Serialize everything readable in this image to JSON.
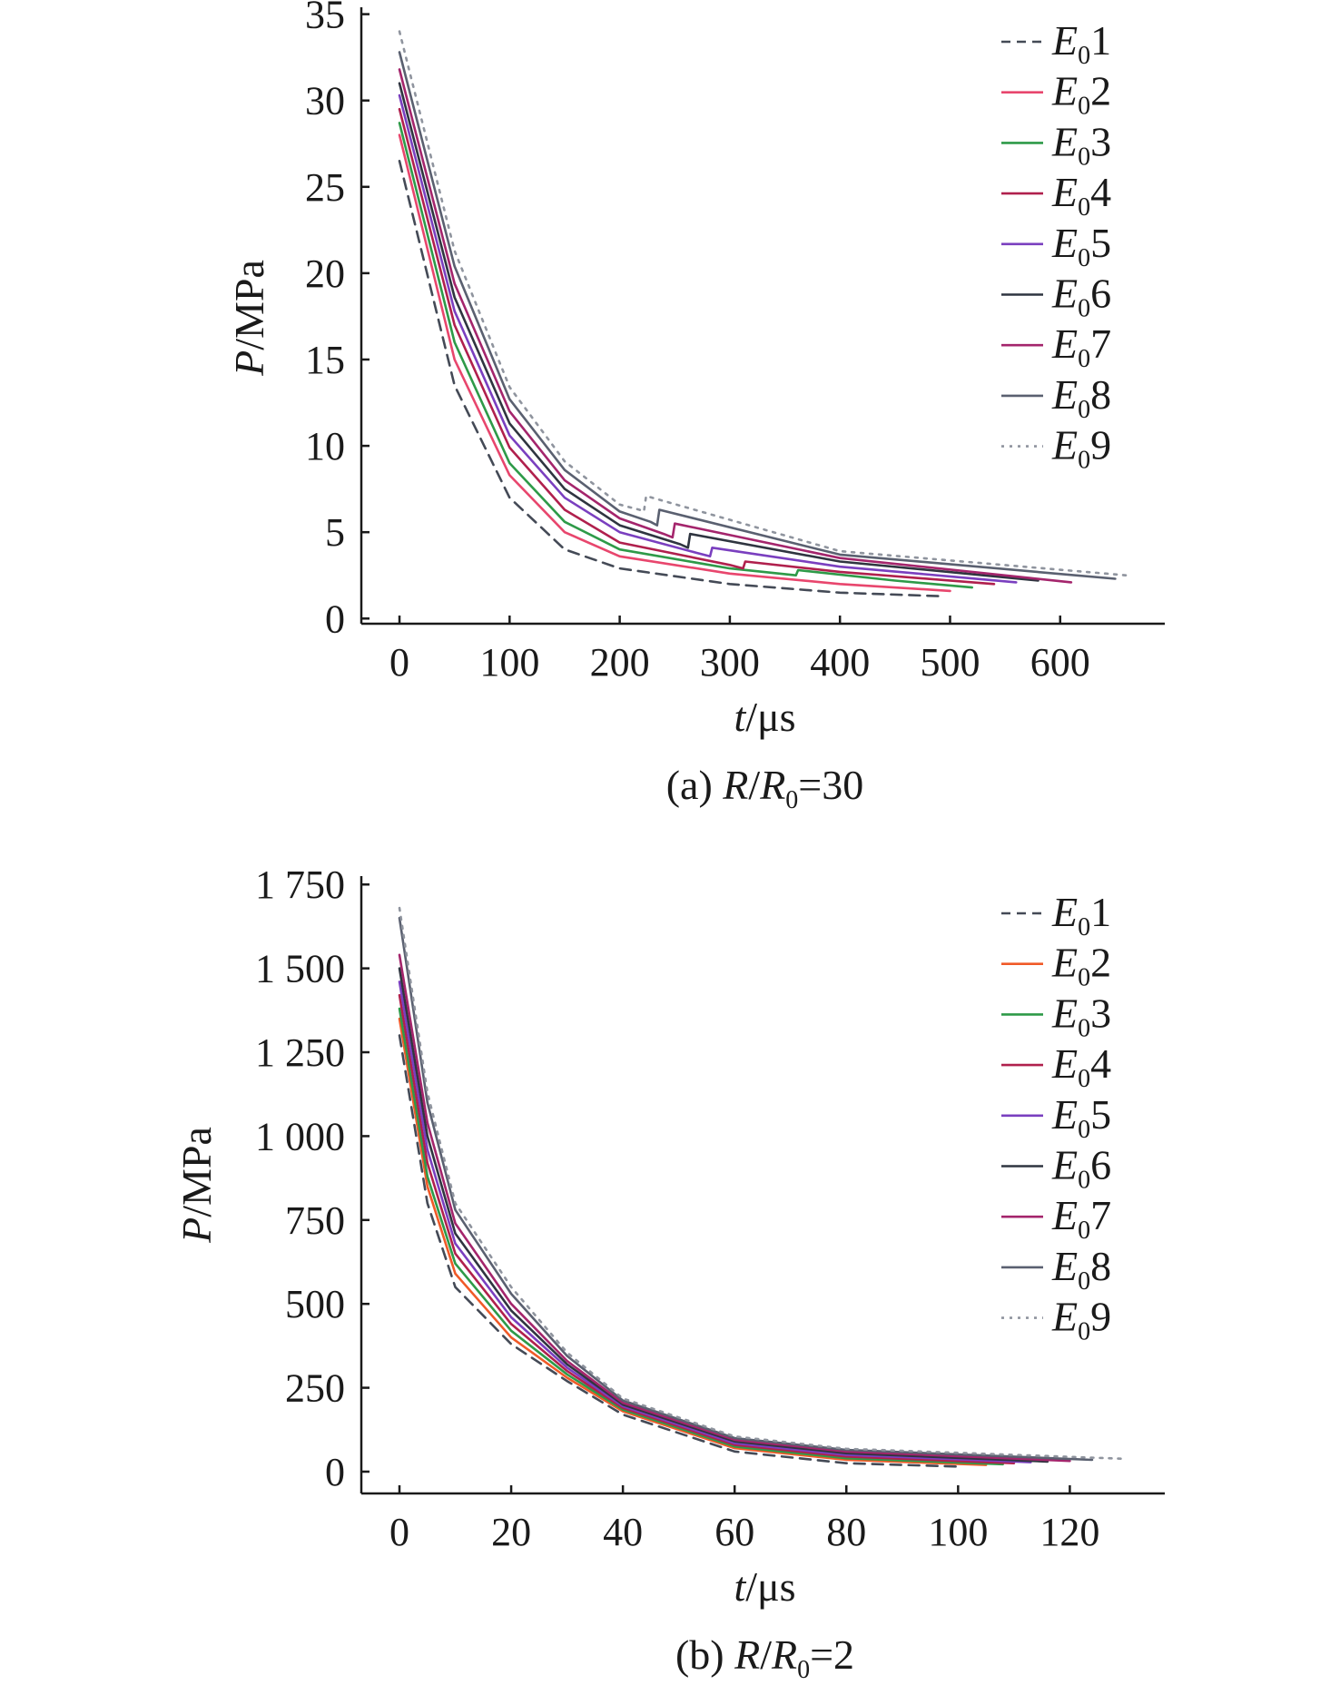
{
  "chart_data": [
    {
      "type": "line",
      "panel": "a",
      "caption": {
        "prefix": "(a) ",
        "r": "R",
        "slash": "/",
        "r0": "R",
        "r0_sub": "0",
        "suffix": "=30"
      },
      "xlabel": {
        "var": "t",
        "unit": "/μs"
      },
      "ylabel": {
        "var": "P",
        "unit": "/MPa"
      },
      "xlim": [
        -33,
        695
      ],
      "ylim": [
        -0.3,
        35.4
      ],
      "xticks": [
        0,
        100,
        200,
        300,
        400,
        500,
        600
      ],
      "xtick_labels": [
        "0",
        "100",
        "200",
        "300",
        "400",
        "500",
        "600"
      ],
      "yticks": [
        0,
        5,
        10,
        15,
        20,
        25,
        30,
        35
      ],
      "ytick_labels": [
        "0",
        "5",
        "10",
        "15",
        "20",
        "25",
        "30",
        "35"
      ],
      "legend_position": "top-right",
      "series": [
        {
          "name": "E",
          "name_sub": "0",
          "name_suffix": "1",
          "color": "#444a56",
          "dash": "dash",
          "x": [
            0,
            50,
            100,
            150,
            200,
            300,
            400,
            490
          ],
          "y": [
            26.5,
            13.5,
            7.0,
            4.0,
            2.9,
            2.0,
            1.5,
            1.3
          ]
        },
        {
          "name": "E",
          "name_sub": "0",
          "name_suffix": "2",
          "color": "#e8466d",
          "dash": "solid",
          "x": [
            0,
            50,
            100,
            150,
            200,
            300,
            400,
            500
          ],
          "y": [
            28.0,
            15.0,
            8.3,
            5.0,
            3.6,
            2.6,
            2.0,
            1.6
          ]
        },
        {
          "name": "E",
          "name_sub": "0",
          "name_suffix": "3",
          "color": "#2e9a48",
          "dash": "solid",
          "x": [
            0,
            50,
            100,
            150,
            200,
            300,
            360,
            362,
            450,
            520
          ],
          "y": [
            28.7,
            16.0,
            9.0,
            5.6,
            4.0,
            2.9,
            2.5,
            2.8,
            2.2,
            1.8
          ]
        },
        {
          "name": "E",
          "name_sub": "0",
          "name_suffix": "4",
          "color": "#b0204d",
          "dash": "solid",
          "x": [
            0,
            50,
            100,
            150,
            200,
            300,
            312,
            314,
            400,
            540
          ],
          "y": [
            29.5,
            17.0,
            9.9,
            6.3,
            4.4,
            3.1,
            2.9,
            3.3,
            2.7,
            2.0
          ]
        },
        {
          "name": "E",
          "name_sub": "0",
          "name_suffix": "5",
          "color": "#7a3fbf",
          "dash": "solid",
          "x": [
            0,
            50,
            100,
            150,
            200,
            270,
            282,
            284,
            400,
            560
          ],
          "y": [
            30.3,
            17.8,
            10.6,
            7.0,
            5.0,
            3.8,
            3.6,
            4.1,
            3.0,
            2.1
          ]
        },
        {
          "name": "E",
          "name_sub": "0",
          "name_suffix": "6",
          "color": "#2f3540",
          "dash": "solid",
          "x": [
            0,
            50,
            100,
            150,
            200,
            255,
            262,
            264,
            400,
            580
          ],
          "y": [
            31.0,
            18.6,
            11.3,
            7.5,
            5.4,
            4.3,
            4.1,
            4.9,
            3.3,
            2.2
          ]
        },
        {
          "name": "E",
          "name_sub": "0",
          "name_suffix": "7",
          "color": "#a4256c",
          "dash": "solid",
          "x": [
            0,
            50,
            100,
            150,
            200,
            240,
            248,
            250,
            400,
            610
          ],
          "y": [
            31.8,
            19.4,
            12.0,
            8.0,
            5.8,
            4.9,
            4.7,
            5.5,
            3.5,
            2.1
          ]
        },
        {
          "name": "E",
          "name_sub": "0",
          "name_suffix": "8",
          "color": "#5a6070",
          "dash": "solid",
          "x": [
            0,
            50,
            100,
            150,
            200,
            228,
            234,
            236,
            400,
            650
          ],
          "y": [
            32.8,
            20.4,
            12.7,
            8.6,
            6.2,
            5.6,
            5.4,
            6.3,
            3.7,
            2.3
          ]
        },
        {
          "name": "E",
          "name_sub": "0",
          "name_suffix": "9",
          "color": "#8f949e",
          "dash": "dot",
          "x": [
            0,
            50,
            100,
            150,
            200,
            218,
            222,
            224,
            400,
            660
          ],
          "y": [
            34.0,
            21.3,
            13.4,
            9.1,
            6.6,
            6.3,
            6.2,
            7.1,
            3.9,
            2.5
          ]
        }
      ]
    },
    {
      "type": "line",
      "panel": "b",
      "caption": {
        "prefix": "(b) ",
        "r": "R",
        "slash": "/",
        "r0": "R",
        "r0_sub": "0",
        "suffix": "=2"
      },
      "xlabel": {
        "var": "t",
        "unit": "/μs"
      },
      "ylabel": {
        "var": "P",
        "unit": "/MPa"
      },
      "xlim": [
        -6.5,
        137
      ],
      "ylim": [
        -65,
        1775
      ],
      "xticks": [
        0,
        20,
        40,
        60,
        80,
        100,
        120
      ],
      "xtick_labels": [
        "0",
        "20",
        "40",
        "60",
        "80",
        "100",
        "120"
      ],
      "yticks": [
        0,
        250,
        500,
        750,
        1000,
        1250,
        1500,
        1750
      ],
      "ytick_labels": [
        "0",
        "250",
        "500",
        "750",
        "1 000",
        "1 250",
        "1 500",
        "1 750"
      ],
      "legend_position": "top-right",
      "series": [
        {
          "name": "E",
          "name_sub": "0",
          "name_suffix": "1",
          "color": "#444a56",
          "dash": "dash",
          "x": [
            0,
            5,
            10,
            20,
            30,
            40,
            60,
            80,
            100
          ],
          "y": [
            1300,
            800,
            550,
            380,
            270,
            170,
            60,
            25,
            15
          ]
        },
        {
          "name": "E",
          "name_sub": "0",
          "name_suffix": "2",
          "color": "#f05a28",
          "dash": "solid",
          "x": [
            0,
            5,
            10,
            20,
            30,
            40,
            60,
            80,
            105
          ],
          "y": [
            1350,
            850,
            590,
            400,
            280,
            180,
            70,
            35,
            20
          ]
        },
        {
          "name": "E",
          "name_sub": "0",
          "name_suffix": "3",
          "color": "#2e9a48",
          "dash": "solid",
          "x": [
            0,
            5,
            10,
            20,
            30,
            40,
            60,
            80,
            108
          ],
          "y": [
            1380,
            880,
            620,
            420,
            290,
            185,
            75,
            40,
            22
          ]
        },
        {
          "name": "E",
          "name_sub": "0",
          "name_suffix": "4",
          "color": "#b0204d",
          "dash": "solid",
          "x": [
            0,
            5,
            10,
            20,
            30,
            40,
            60,
            80,
            110
          ],
          "y": [
            1420,
            920,
            650,
            440,
            300,
            190,
            80,
            45,
            25
          ]
        },
        {
          "name": "E",
          "name_sub": "0",
          "name_suffix": "5",
          "color": "#7a3fbf",
          "dash": "solid",
          "x": [
            0,
            5,
            10,
            20,
            30,
            40,
            60,
            80,
            113
          ],
          "y": [
            1460,
            960,
            680,
            460,
            310,
            195,
            85,
            50,
            28
          ]
        },
        {
          "name": "E",
          "name_sub": "0",
          "name_suffix": "6",
          "color": "#2f3540",
          "dash": "solid",
          "x": [
            0,
            5,
            10,
            20,
            30,
            40,
            60,
            80,
            116
          ],
          "y": [
            1500,
            1000,
            710,
            480,
            320,
            200,
            90,
            55,
            30
          ]
        },
        {
          "name": "E",
          "name_sub": "0",
          "name_suffix": "7",
          "color": "#a4256c",
          "dash": "solid",
          "x": [
            0,
            5,
            10,
            20,
            30,
            40,
            60,
            80,
            120
          ],
          "y": [
            1540,
            1040,
            740,
            500,
            330,
            205,
            95,
            60,
            32
          ]
        },
        {
          "name": "E",
          "name_sub": "0",
          "name_suffix": "8",
          "color": "#5a6070",
          "dash": "solid",
          "x": [
            0,
            5,
            10,
            20,
            30,
            40,
            60,
            80,
            124
          ],
          "y": [
            1650,
            1100,
            780,
            530,
            345,
            212,
            100,
            65,
            35
          ]
        },
        {
          "name": "E",
          "name_sub": "0",
          "name_suffix": "9",
          "color": "#8f949e",
          "dash": "dot",
          "x": [
            0,
            5,
            10,
            20,
            30,
            40,
            60,
            80,
            130
          ],
          "y": [
            1680,
            1130,
            800,
            550,
            355,
            218,
            105,
            68,
            38
          ]
        }
      ]
    }
  ]
}
